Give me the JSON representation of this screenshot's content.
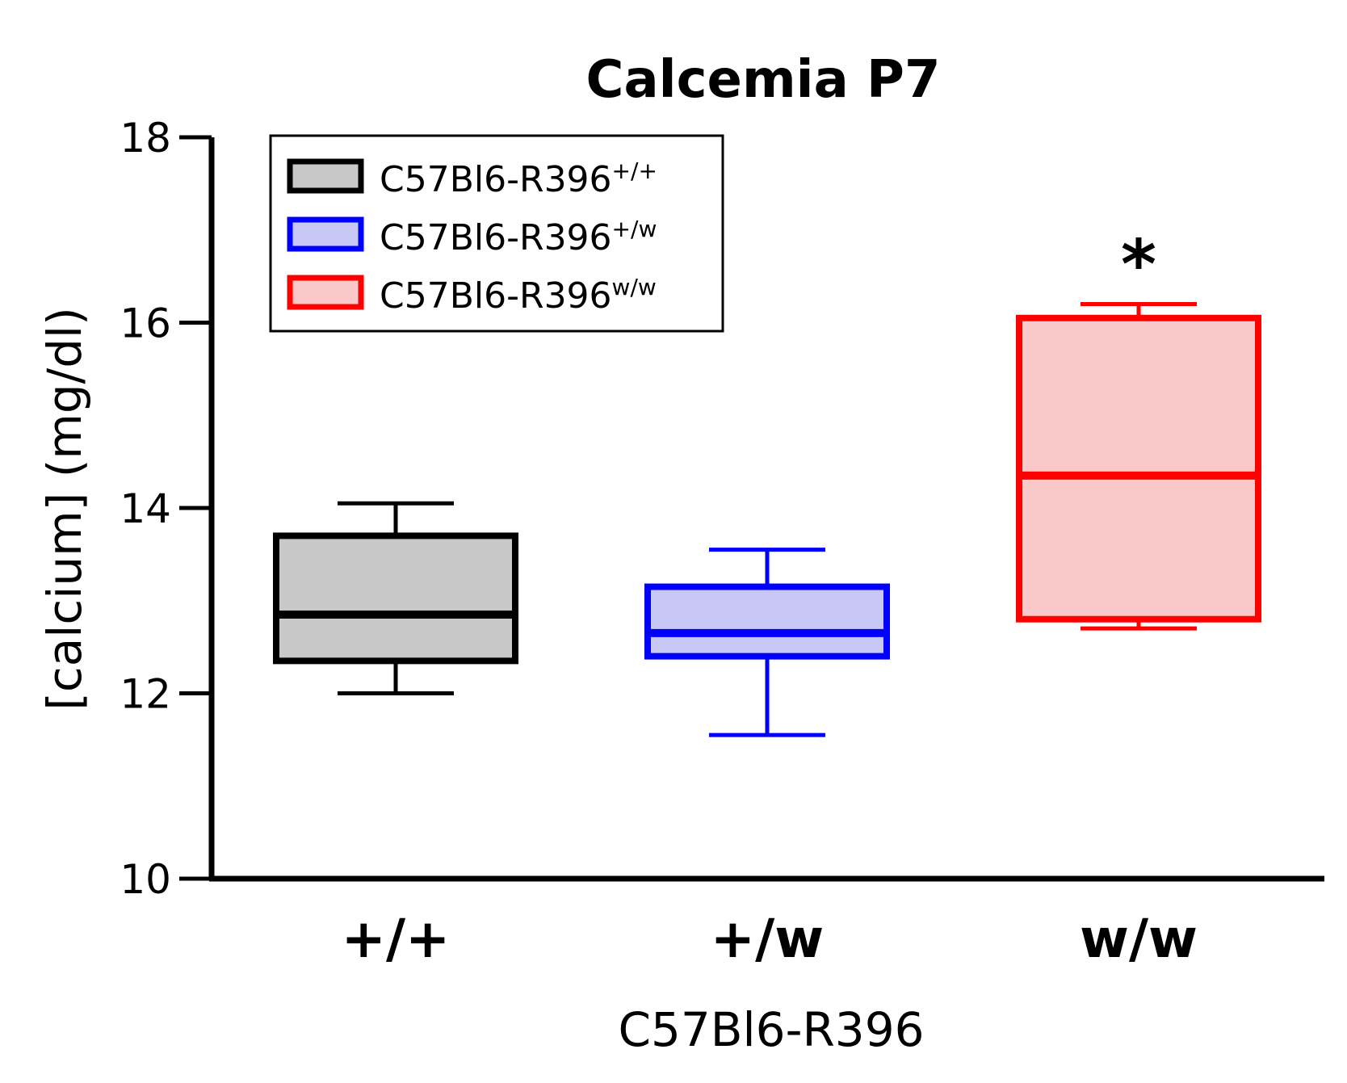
{
  "chart_data": {
    "type": "boxplot",
    "title": "Calcemia P7",
    "xlabel": "C57Bl6-R396",
    "ylabel": "[calcium] (mg/dl)",
    "ylim": [
      10,
      18
    ],
    "yticks": [
      10,
      12,
      14,
      16,
      18
    ],
    "grid": false,
    "legend_position": "top-left",
    "categories": [
      "+/+",
      "+/w",
      "w/w"
    ],
    "series": [
      {
        "name": "C57Bl6-R396",
        "superscript": "+/+",
        "category": "+/+",
        "whisker_low": 12.0,
        "q1": 12.35,
        "median": 12.85,
        "q3": 13.7,
        "whisker_high": 14.05,
        "stroke": "#000000",
        "fill": "#c8c8c8",
        "significance": ""
      },
      {
        "name": "C57Bl6-R396",
        "superscript": "+/w",
        "category": "+/w",
        "whisker_low": 11.55,
        "q1": 12.4,
        "median": 12.65,
        "q3": 13.15,
        "whisker_high": 13.55,
        "stroke": "#0000ff",
        "fill": "#c8c8f5",
        "significance": ""
      },
      {
        "name": "C57Bl6-R396",
        "superscript": "w/w",
        "category": "w/w",
        "whisker_low": 12.7,
        "q1": 12.8,
        "median": 14.35,
        "q3": 16.05,
        "whisker_high": 16.2,
        "stroke": "#ff0000",
        "fill": "#fac8c8",
        "significance": "*"
      }
    ]
  }
}
